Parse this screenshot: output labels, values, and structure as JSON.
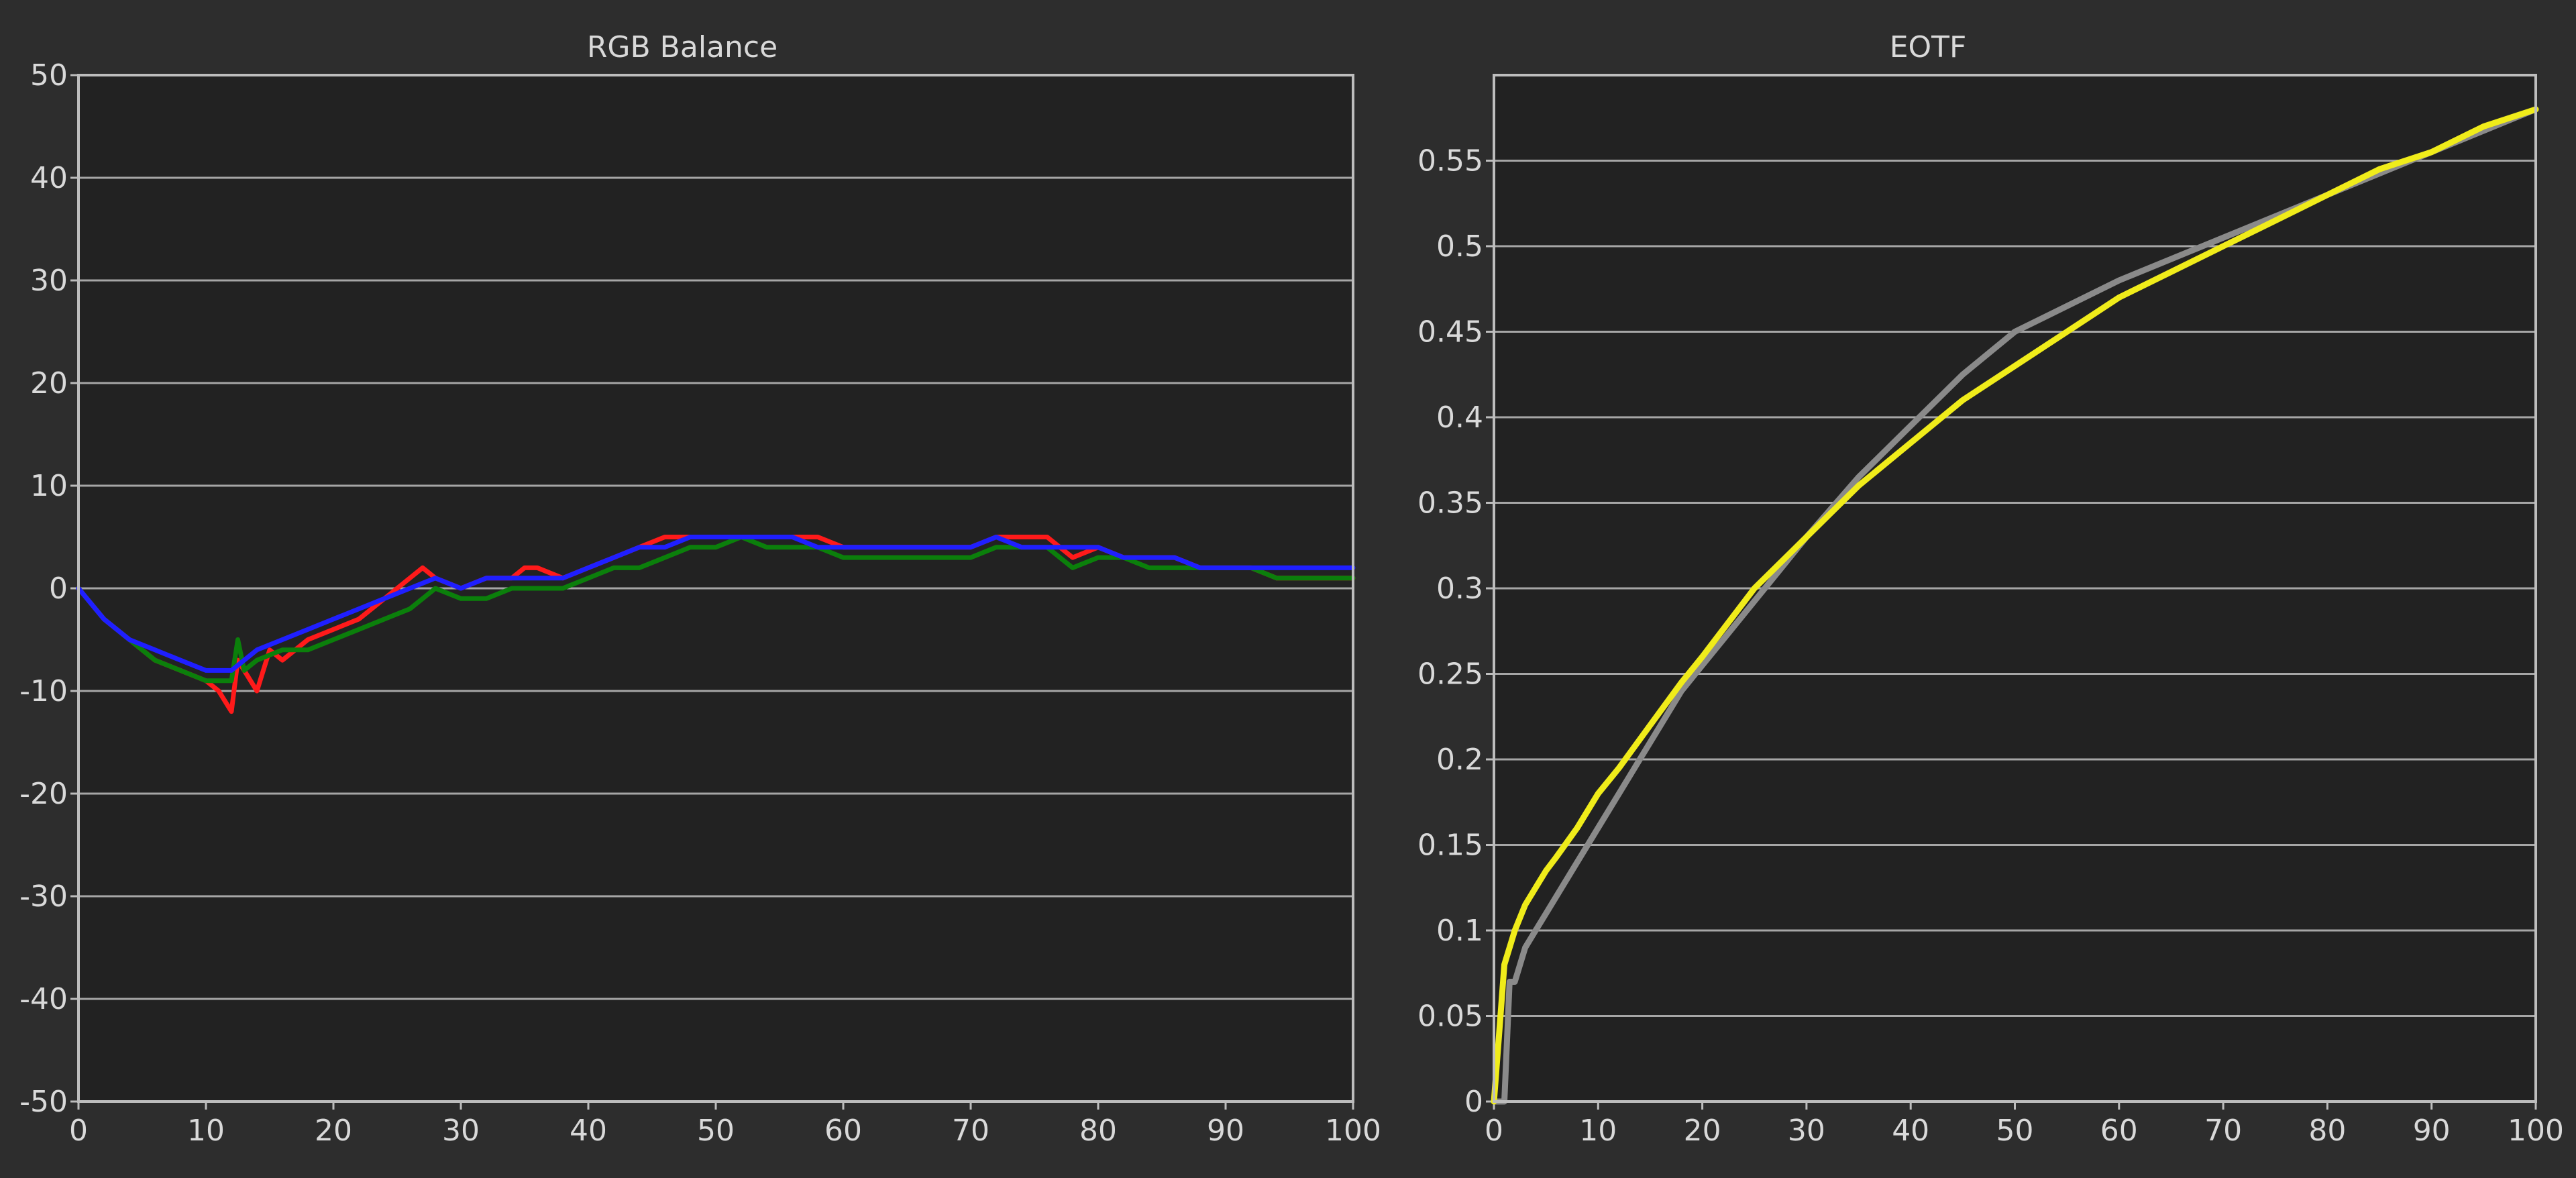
{
  "colors": {
    "background": "#2d2d2d",
    "plot_background": "#222222",
    "grid": "#a6a6a6",
    "frame": "#bdbdbd",
    "text": "#d9d9d9",
    "red": "#ff1a1a",
    "green": "#0b7f0b",
    "blue": "#1f1fff",
    "yellow": "#f0ec1a",
    "gray": "#8a8a8a"
  },
  "chart_data": [
    {
      "type": "line",
      "title": "RGB Balance",
      "xlabel": "",
      "ylabel": "",
      "xlim": [
        0,
        100
      ],
      "ylim": [
        -50,
        50
      ],
      "x_ticks": [
        "0",
        "10",
        "20",
        "30",
        "40",
        "50",
        "60",
        "70",
        "80",
        "90",
        "100"
      ],
      "y_ticks": [
        "50",
        "40",
        "30",
        "20",
        "10",
        "0",
        "-10",
        "-20",
        "-30",
        "-40",
        "-50"
      ],
      "grid": true,
      "series": [
        {
          "color": "red",
          "x": [
            0,
            2,
            4,
            6,
            8,
            10,
            11,
            12,
            12.5,
            13,
            14,
            15,
            16,
            18,
            20,
            22,
            24,
            26,
            27,
            28,
            30,
            32,
            34,
            35,
            36,
            38,
            40,
            42,
            44,
            46,
            48,
            50,
            52,
            54,
            56,
            58,
            60,
            62,
            64,
            66,
            68,
            70,
            72,
            74,
            76,
            77,
            78,
            80,
            82,
            84,
            86,
            88,
            90,
            92,
            94,
            96,
            98,
            100
          ],
          "y": [
            0,
            -3,
            -5,
            -7,
            -8,
            -9,
            -10,
            -12,
            -7,
            -8,
            -10,
            -6,
            -7,
            -5,
            -4,
            -3,
            -1,
            1,
            2,
            1,
            0,
            1,
            1,
            2,
            2,
            1,
            2,
            3,
            4,
            5,
            5,
            5,
            5,
            5,
            5,
            5,
            4,
            4,
            4,
            4,
            4,
            4,
            5,
            5,
            5,
            4,
            3,
            4,
            3,
            3,
            3,
            2,
            2,
            2,
            1,
            1,
            1,
            1
          ]
        },
        {
          "color": "green",
          "x": [
            0,
            2,
            4,
            6,
            8,
            10,
            11,
            12,
            12.5,
            13,
            14,
            16,
            18,
            20,
            22,
            24,
            26,
            28,
            30,
            32,
            34,
            36,
            38,
            40,
            42,
            44,
            46,
            48,
            50,
            52,
            54,
            56,
            58,
            60,
            62,
            64,
            66,
            68,
            70,
            72,
            74,
            76,
            77,
            78,
            80,
            82,
            84,
            86,
            88,
            90,
            92,
            94,
            96,
            98,
            100
          ],
          "y": [
            0,
            -3,
            -5,
            -7,
            -8,
            -9,
            -9,
            -9,
            -5,
            -8,
            -7,
            -6,
            -6,
            -5,
            -4,
            -3,
            -2,
            0,
            -1,
            -1,
            0,
            0,
            0,
            1,
            2,
            2,
            3,
            4,
            4,
            5,
            4,
            4,
            4,
            3,
            3,
            3,
            3,
            3,
            3,
            4,
            4,
            4,
            3,
            2,
            3,
            3,
            2,
            2,
            2,
            2,
            2,
            1,
            1,
            1,
            1
          ]
        },
        {
          "color": "blue",
          "x": [
            0,
            2,
            4,
            6,
            8,
            10,
            11,
            12,
            13,
            14,
            16,
            18,
            20,
            22,
            24,
            26,
            28,
            30,
            32,
            34,
            36,
            38,
            40,
            42,
            44,
            46,
            48,
            50,
            52,
            54,
            56,
            58,
            60,
            62,
            64,
            66,
            68,
            70,
            72,
            74,
            76,
            78,
            80,
            82,
            84,
            86,
            88,
            90,
            92,
            94,
            96,
            98,
            100
          ],
          "y": [
            0,
            -3,
            -5,
            -6,
            -7,
            -8,
            -8,
            -8,
            -7,
            -6,
            -5,
            -4,
            -3,
            -2,
            -1,
            0,
            1,
            0,
            1,
            1,
            1,
            1,
            2,
            3,
            4,
            4,
            5,
            5,
            5,
            5,
            5,
            4,
            4,
            4,
            4,
            4,
            4,
            4,
            5,
            4,
            4,
            4,
            4,
            3,
            3,
            3,
            2,
            2,
            2,
            2,
            2,
            2,
            2
          ]
        }
      ]
    },
    {
      "type": "line",
      "title": "EOTF",
      "xlabel": "",
      "ylabel": "",
      "xlim": [
        0,
        100
      ],
      "ylim": [
        0,
        0.6
      ],
      "x_ticks": [
        "0",
        "10",
        "20",
        "30",
        "40",
        "50",
        "60",
        "70",
        "80",
        "90",
        "100"
      ],
      "y_ticks": [
        "0.55",
        "0.5",
        "0.45",
        "0.4",
        "0.35",
        "0.3",
        "0.25",
        "0.2",
        "0.15",
        "0.1",
        "0.05",
        "0"
      ],
      "grid": true,
      "series": [
        {
          "color": "gray",
          "x": [
            0,
            1,
            1.5,
            2,
            3,
            4,
            5,
            6,
            7,
            8,
            9,
            10,
            12,
            14,
            16,
            18,
            20,
            22,
            24,
            26,
            30,
            35,
            40,
            45,
            50,
            60,
            70,
            80,
            90,
            100
          ],
          "y": [
            0,
            0,
            0.07,
            0.07,
            0.09,
            0.1,
            0.11,
            0.12,
            0.13,
            0.14,
            0.15,
            0.16,
            0.18,
            0.2,
            0.22,
            0.24,
            0.255,
            0.27,
            0.285,
            0.3,
            0.33,
            0.365,
            0.395,
            0.425,
            0.45,
            0.48,
            0.505,
            0.53,
            0.555,
            0.58
          ]
        },
        {
          "color": "yellow",
          "x": [
            0,
            0.5,
            1,
            2,
            3,
            4,
            5,
            6,
            8,
            10,
            12,
            15,
            18,
            20,
            25,
            30,
            35,
            40,
            45,
            50,
            55,
            60,
            65,
            70,
            75,
            80,
            85,
            90,
            95,
            100
          ],
          "y": [
            0,
            0.04,
            0.08,
            0.1,
            0.115,
            0.125,
            0.135,
            0.143,
            0.16,
            0.18,
            0.195,
            0.22,
            0.245,
            0.26,
            0.3,
            0.33,
            0.36,
            0.385,
            0.41,
            0.43,
            0.45,
            0.47,
            0.485,
            0.5,
            0.515,
            0.53,
            0.545,
            0.555,
            0.57,
            0.58
          ]
        }
      ]
    }
  ]
}
